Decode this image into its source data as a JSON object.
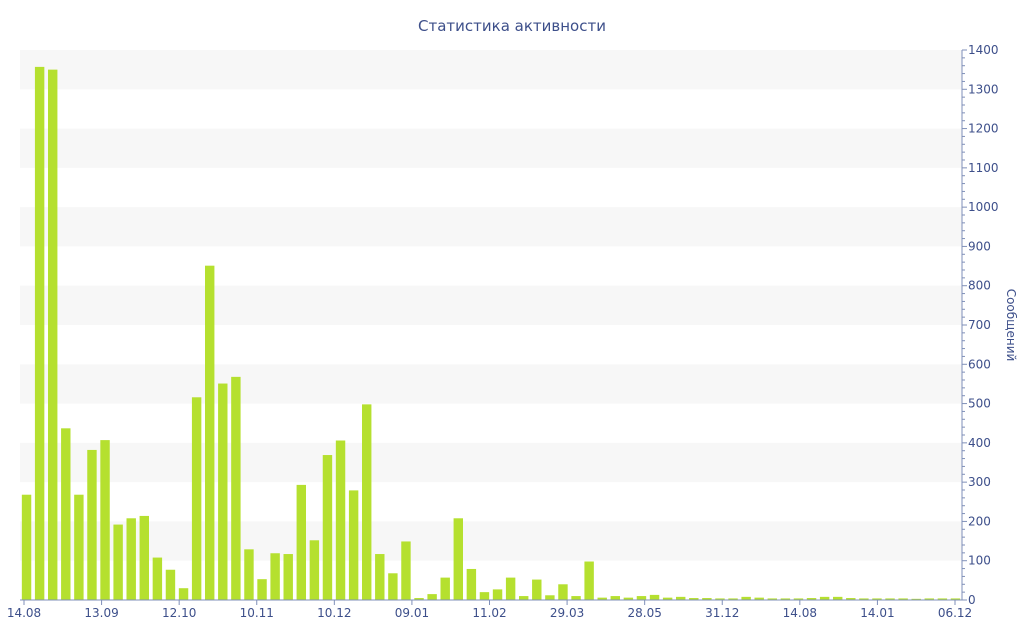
{
  "chart_data": {
    "type": "bar",
    "title": "Статистика активности",
    "xlabel": "",
    "ylabel": "Сообщений",
    "y_axis_side": "right",
    "ylim": [
      0,
      1400
    ],
    "y_ticks": [
      0,
      100,
      200,
      300,
      400,
      500,
      600,
      700,
      800,
      900,
      1000,
      1100,
      1200,
      1300,
      1400
    ],
    "x_tick_labels": [
      "14.08",
      "13.09",
      "12.10",
      "10.11",
      "10.12",
      "09.01",
      "11.02",
      "29.03",
      "28.05",
      "31.12",
      "14.08",
      "14.01",
      "06.12"
    ],
    "bar_color": "#b5e02f",
    "grid": "alternating horizontal bands",
    "values": [
      268,
      1357,
      1350,
      437,
      268,
      382,
      407,
      192,
      208,
      214,
      108,
      77,
      30,
      516,
      851,
      551,
      568,
      129,
      53,
      119,
      117,
      293,
      152,
      369,
      406,
      279,
      498,
      117,
      68,
      149,
      5,
      15,
      57,
      208,
      79,
      20,
      27,
      57,
      10,
      52,
      12,
      40,
      10,
      98,
      6,
      10,
      6,
      10,
      13,
      6,
      8,
      5,
      5,
      4,
      4,
      8,
      6,
      4,
      4,
      4,
      5,
      8,
      8,
      5,
      4,
      4,
      4,
      4,
      3,
      4,
      4,
      4
    ]
  }
}
